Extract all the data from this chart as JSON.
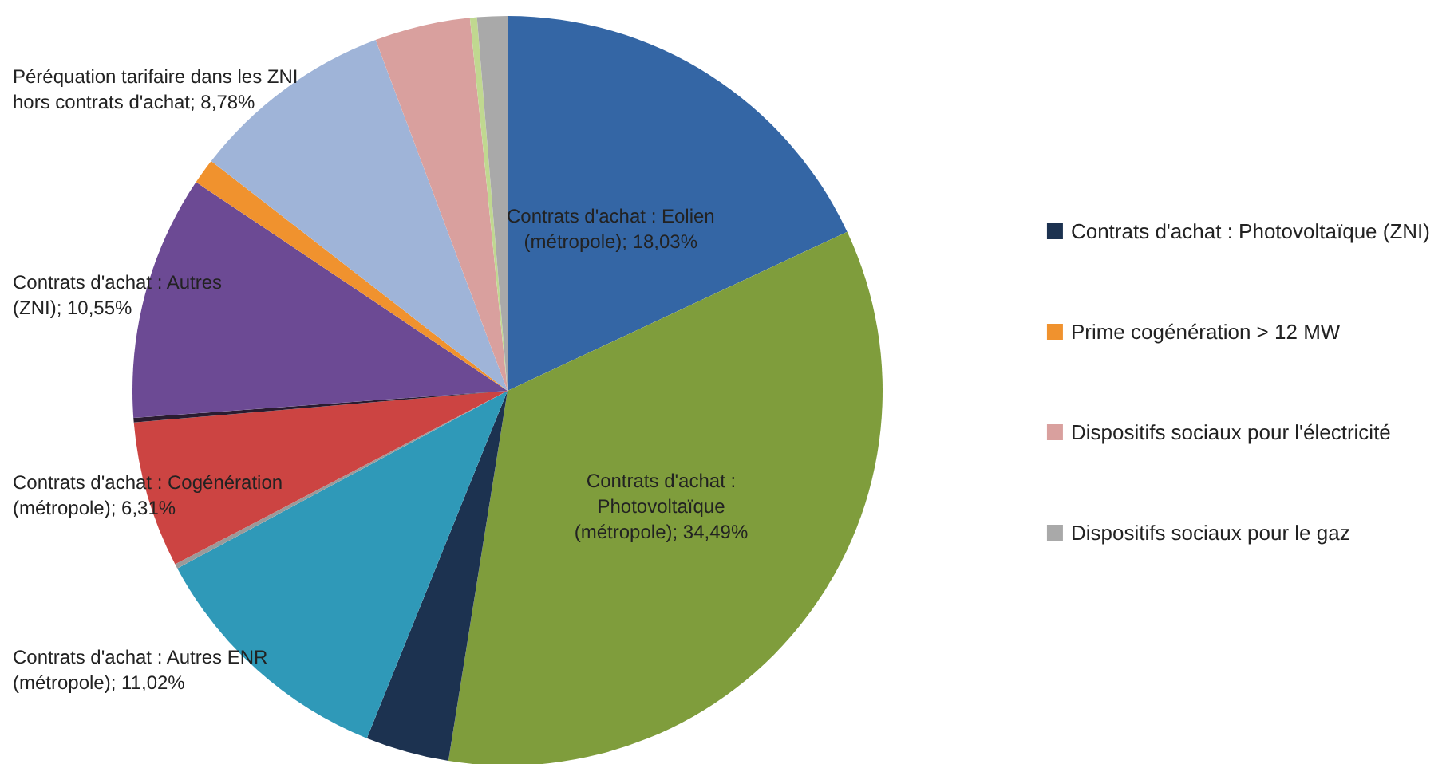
{
  "chart_data": {
    "type": "pie",
    "categories": [
      "Contrats d'achat : Eolien (métropole)",
      "Contrats d'achat : Photovoltaïque (métropole)",
      "Contrats d'achat : Photovoltaïque (ZNI)",
      "Contrats d'achat : Autres ENR (métropole)",
      null,
      "Contrats d'achat : Cogénération (métropole)",
      null,
      "Contrats d'achat : Autres (ZNI)",
      "Prime cogénération > 12 MW",
      "Péréquation tarifaire dans les ZNI hors contrats d'achat",
      "Dispositifs sociaux pour l'électricité",
      null,
      "Dispositifs sociaux pour le gaz"
    ],
    "values": [
      18.03,
      34.49,
      3.6,
      11.02,
      0.2,
      6.31,
      0.2,
      10.55,
      1.1,
      8.78,
      4.12,
      0.3,
      1.3
    ],
    "value_labels": [
      "18,03%",
      "34,49%",
      null,
      "11,02%",
      null,
      "6,31%",
      null,
      "10,55%",
      null,
      "8,78%",
      null,
      null,
      null
    ],
    "colors": [
      "#3466a5",
      "#7f9d3c",
      "#1c3250",
      "#2f99b8",
      "#9a9a9a",
      "#cc4442",
      "#2a1c30",
      "#6c4a94",
      "#f0922e",
      "#9fb4d8",
      "#d9a09e",
      "#c0d890",
      "#a9a9a9"
    ],
    "legend": "right"
  }
}
